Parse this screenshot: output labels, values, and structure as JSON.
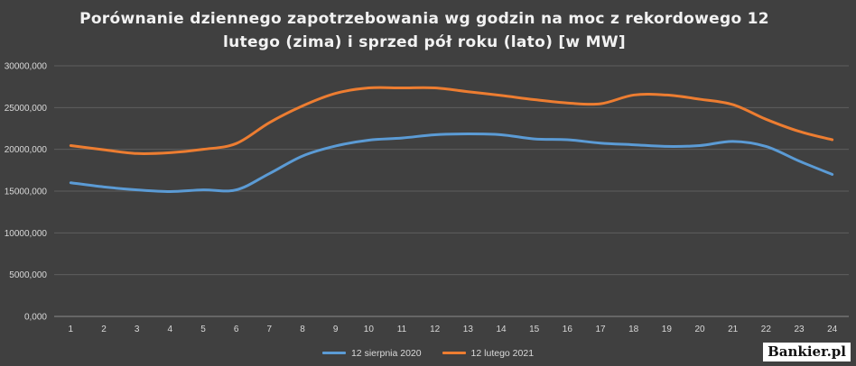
{
  "chart_data": {
    "type": "line",
    "title": "Porównanie dziennego zapotrzebowania wg godzin na moc z rekordowego 12 lutego (zima) i sprzed pół roku (lato) [w MW]",
    "xlabel": "",
    "ylabel": "",
    "categories": [
      "1",
      "2",
      "3",
      "4",
      "5",
      "6",
      "7",
      "8",
      "9",
      "10",
      "11",
      "12",
      "13",
      "14",
      "15",
      "16",
      "17",
      "18",
      "19",
      "20",
      "21",
      "22",
      "23",
      "24"
    ],
    "ylim": [
      0,
      30000
    ],
    "y_ticks": [
      0,
      5000,
      10000,
      15000,
      20000,
      25000,
      30000
    ],
    "y_tick_labels": [
      "0,000",
      "5000,000",
      "10000,000",
      "15000,000",
      "20000,000",
      "25000,000",
      "30000,000"
    ],
    "grid": true,
    "legend_position": "bottom",
    "series": [
      {
        "name": "12 sierpnia 2020",
        "color": "#5b9bd5",
        "values": [
          16000,
          15500,
          15150,
          14950,
          15150,
          15150,
          17100,
          19200,
          20400,
          21100,
          21350,
          21750,
          21850,
          21750,
          21250,
          21150,
          20750,
          20550,
          20350,
          20450,
          20950,
          20350,
          18600,
          17000
        ]
      },
      {
        "name": "12 lutego 2021",
        "color": "#ed7d31",
        "values": [
          20450,
          19950,
          19500,
          19600,
          20000,
          20700,
          23200,
          25200,
          26700,
          27350,
          27350,
          27350,
          26900,
          26450,
          25950,
          25550,
          25450,
          26500,
          26500,
          26000,
          25350,
          23600,
          22150,
          21150
        ]
      }
    ]
  },
  "watermark": "Bankier.pl"
}
